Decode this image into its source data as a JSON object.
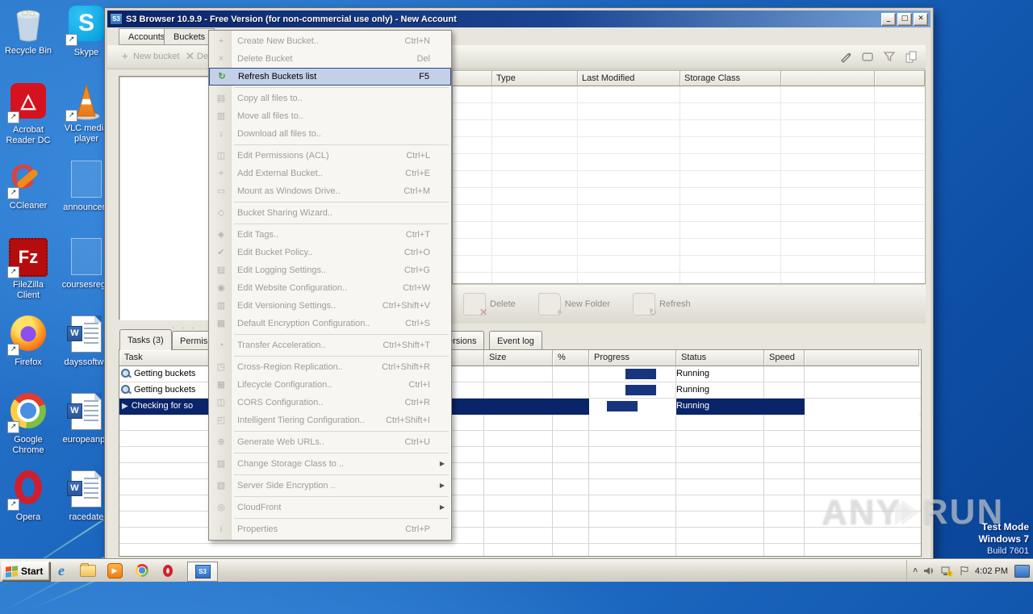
{
  "desktop": {
    "icons": [
      {
        "name": "recycle-bin",
        "label": "Recycle Bin",
        "col": 0,
        "row": 0,
        "kind": "recycle"
      },
      {
        "name": "skype",
        "label": "Skype",
        "col": 1,
        "row": 0,
        "kind": "skype"
      },
      {
        "name": "acrobat-reader",
        "label": "Acrobat Reader DC",
        "col": 0,
        "row": 1,
        "kind": "acrobat"
      },
      {
        "name": "vlc-media-player",
        "label": "VLC media player",
        "col": 1,
        "row": 1,
        "kind": "vlc"
      },
      {
        "name": "ccleaner",
        "label": "CCleaner",
        "col": 0,
        "row": 2,
        "kind": "ccleaner"
      },
      {
        "name": "announcement-doc",
        "label": "announcem",
        "col": 1,
        "row": 2,
        "kind": "ghostdoc"
      },
      {
        "name": "filezilla-client",
        "label": "FileZilla Client",
        "col": 0,
        "row": 3,
        "kind": "filezilla"
      },
      {
        "name": "courses-doc",
        "label": "coursesrega",
        "col": 1,
        "row": 3,
        "kind": "ghostdoc"
      },
      {
        "name": "firefox",
        "label": "Firefox",
        "col": 0,
        "row": 4,
        "kind": "firefox"
      },
      {
        "name": "dayssoftwa-doc",
        "label": "dayssoftwa",
        "col": 1,
        "row": 4,
        "kind": "worddoc"
      },
      {
        "name": "google-chrome",
        "label": "Google Chrome",
        "col": 0,
        "row": 5,
        "kind": "chrome"
      },
      {
        "name": "europeanpa-doc",
        "label": "europeanpa",
        "col": 1,
        "row": 5,
        "kind": "worddoc"
      },
      {
        "name": "opera",
        "label": "Opera",
        "col": 0,
        "row": 6,
        "kind": "opera"
      },
      {
        "name": "racedate-doc",
        "label": "racedate",
        "col": 1,
        "row": 6,
        "kind": "worddoc"
      }
    ],
    "watermark": {
      "left": "ANY",
      "right": "RUN"
    },
    "test_mode_lines": [
      "Test Mode",
      "Windows 7",
      "Build 7601"
    ]
  },
  "window": {
    "title": "S3 Browser 10.9.9 - Free Version (for non-commercial use only) - New Account",
    "title_icon": "S3",
    "titlebar_buttons": [
      "minimize",
      "maximize",
      "close"
    ],
    "tabs": [
      "Accounts",
      "Buckets"
    ],
    "bucket_toolbar": {
      "new_bucket": "New bucket",
      "delete": "Del"
    },
    "right_tool_icons": [
      "edit-pencil-icon",
      "rename-icon",
      "filter-icon",
      "copy-pages-icon"
    ],
    "file_columns": [
      "",
      "Type",
      "Last Modified",
      "Storage Class",
      "",
      ""
    ],
    "files_toolbar": {
      "delete": "Delete",
      "new_folder": "New Folder",
      "refresh": "Refresh"
    },
    "bottom_tabs": [
      "Tasks (3)",
      "Permis",
      "ersions",
      "Event log"
    ],
    "task_columns": [
      "Task",
      "Size",
      "%",
      "Progress",
      "Status",
      "Speed",
      ""
    ],
    "tasks": [
      {
        "label": "Getting buckets",
        "status": "Running",
        "icon": "magnifier",
        "selected": false,
        "progress_pos": "center"
      },
      {
        "label": "Getting buckets",
        "status": "Running",
        "icon": "magnifier",
        "selected": false,
        "progress_pos": "center"
      },
      {
        "label": "Checking for so",
        "status": "Running",
        "icon": "play",
        "selected": true,
        "progress_pos": "left"
      }
    ]
  },
  "menu": {
    "items": [
      {
        "label": "Create New Bucket..",
        "shortcut": "Ctrl+N",
        "icon": "plus",
        "disabled": true
      },
      {
        "label": "Delete Bucket",
        "shortcut": "Del",
        "icon": "cross",
        "disabled": true
      },
      {
        "label": "Refresh Buckets list",
        "shortcut": "F5",
        "icon": "refresh",
        "highlight": true
      },
      {
        "sep": true
      },
      {
        "label": "Copy all files to..",
        "icon": "copy",
        "disabled": true
      },
      {
        "label": "Move all files to..",
        "icon": "move",
        "disabled": true
      },
      {
        "label": "Download all files to..",
        "icon": "download",
        "disabled": true
      },
      {
        "sep": true
      },
      {
        "label": "Edit Permissions (ACL)",
        "shortcut": "Ctrl+L",
        "icon": "users",
        "disabled": true
      },
      {
        "label": "Add External Bucket..",
        "shortcut": "Ctrl+E",
        "icon": "plus",
        "disabled": true
      },
      {
        "label": "Mount as Windows Drive..",
        "shortcut": "Ctrl+M",
        "icon": "drive",
        "disabled": true
      },
      {
        "sep": true
      },
      {
        "label": "Bucket Sharing Wizard..",
        "icon": "share",
        "disabled": true
      },
      {
        "sep": true
      },
      {
        "label": "Edit Tags..",
        "shortcut": "Ctrl+T",
        "icon": "tag",
        "disabled": true
      },
      {
        "label": "Edit Bucket Policy..",
        "shortcut": "Ctrl+O",
        "icon": "policy",
        "disabled": true
      },
      {
        "label": "Edit Logging Settings..",
        "shortcut": "Ctrl+G",
        "icon": "log",
        "disabled": true
      },
      {
        "label": "Edit Website Configuration..",
        "shortcut": "Ctrl+W",
        "icon": "globe",
        "disabled": true
      },
      {
        "label": "Edit Versioning Settings..",
        "shortcut": "Ctrl+Shift+V",
        "icon": "versions",
        "disabled": true
      },
      {
        "label": "Default Encryption Configuration..",
        "shortcut": "Ctrl+S",
        "icon": "encryption",
        "disabled": true
      },
      {
        "sep": true
      },
      {
        "label": "Transfer Acceleration..",
        "shortcut": "Ctrl+Shift+T",
        "icon": "gauge",
        "disabled": true
      },
      {
        "sep": true
      },
      {
        "label": "Cross-Region Replication..",
        "shortcut": "Ctrl+Shift+R",
        "icon": "replication",
        "disabled": true
      },
      {
        "label": "Lifecycle Configuration..",
        "shortcut": "Ctrl+I",
        "icon": "calendar",
        "disabled": true
      },
      {
        "label": "CORS Configuration..",
        "shortcut": "Ctrl+R",
        "icon": "network",
        "disabled": true
      },
      {
        "label": "Intelligent Tiering Configuration..",
        "shortcut": "Ctrl+Shift+I",
        "icon": "tiering",
        "disabled": true
      },
      {
        "sep": true
      },
      {
        "label": "Generate Web URLs..",
        "shortcut": "Ctrl+U",
        "icon": "url",
        "disabled": true
      },
      {
        "sep": true
      },
      {
        "label": "Change Storage Class to ..",
        "icon": "storage",
        "submenu": true,
        "disabled": true
      },
      {
        "sep": true
      },
      {
        "label": "Server Side Encryption ..",
        "icon": "sse",
        "submenu": true,
        "disabled": true
      },
      {
        "sep": true
      },
      {
        "label": "CloudFront",
        "icon": "cloudfront",
        "submenu": true,
        "disabled": true
      },
      {
        "sep": true
      },
      {
        "label": "Properties",
        "shortcut": "Ctrl+P",
        "icon": "info",
        "disabled": true
      }
    ]
  },
  "taskbar": {
    "start_label": "Start",
    "quick_launch": [
      "internet-explorer",
      "windows-explorer",
      "media-player",
      "chrome",
      "opera"
    ],
    "active_task_icon": "S3",
    "tray_icons": [
      "chevron-up",
      "volume",
      "network-warning",
      "action-flag",
      "monitor"
    ],
    "tray_time": "4:02 PM"
  },
  "colors": {
    "selection_navy": "#0a246a",
    "progress_block": "#17357e",
    "menu_highlight_bg": "#c3d0e8",
    "menu_highlight_border": "#2c4a8a",
    "refresh_green": "#3f9e3f",
    "titlebar_left": "#0a246a",
    "titlebar_right": "#7aa6d9",
    "chrome_grey": "#e8e5dc"
  }
}
